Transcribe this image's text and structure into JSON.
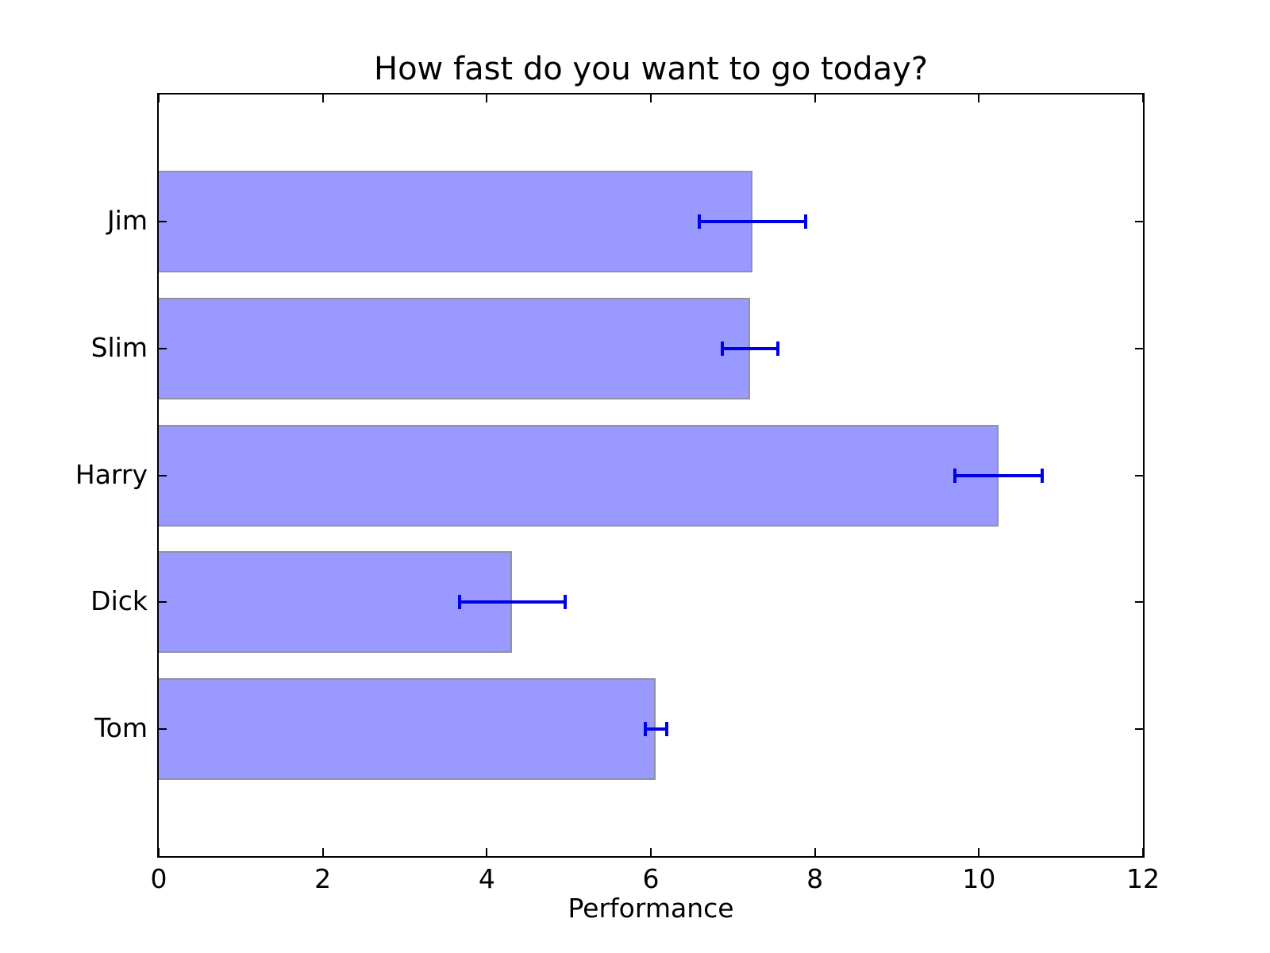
{
  "chart_data": {
    "type": "bar",
    "orientation": "horizontal",
    "title": "How fast do you want to go today?",
    "xlabel": "Performance",
    "ylabel": "",
    "categories": [
      "Jim",
      "Slim",
      "Harry",
      "Dick",
      "Tom"
    ],
    "values": [
      7.24,
      7.21,
      10.24,
      4.31,
      6.06
    ],
    "errors": [
      0.65,
      0.34,
      0.53,
      0.64,
      0.13
    ],
    "xlim": [
      0,
      12
    ],
    "xticks": [
      0,
      2,
      4,
      6,
      8,
      10,
      12
    ],
    "grid": false,
    "legend": "none",
    "bar_height_fraction": 0.8,
    "colors": {
      "bar_fill": "#9999ff",
      "bar_edge": "#90909e",
      "error_bar": "#0000e6",
      "axis": "#000000",
      "text": "#000000",
      "background": "#ffffff"
    }
  }
}
